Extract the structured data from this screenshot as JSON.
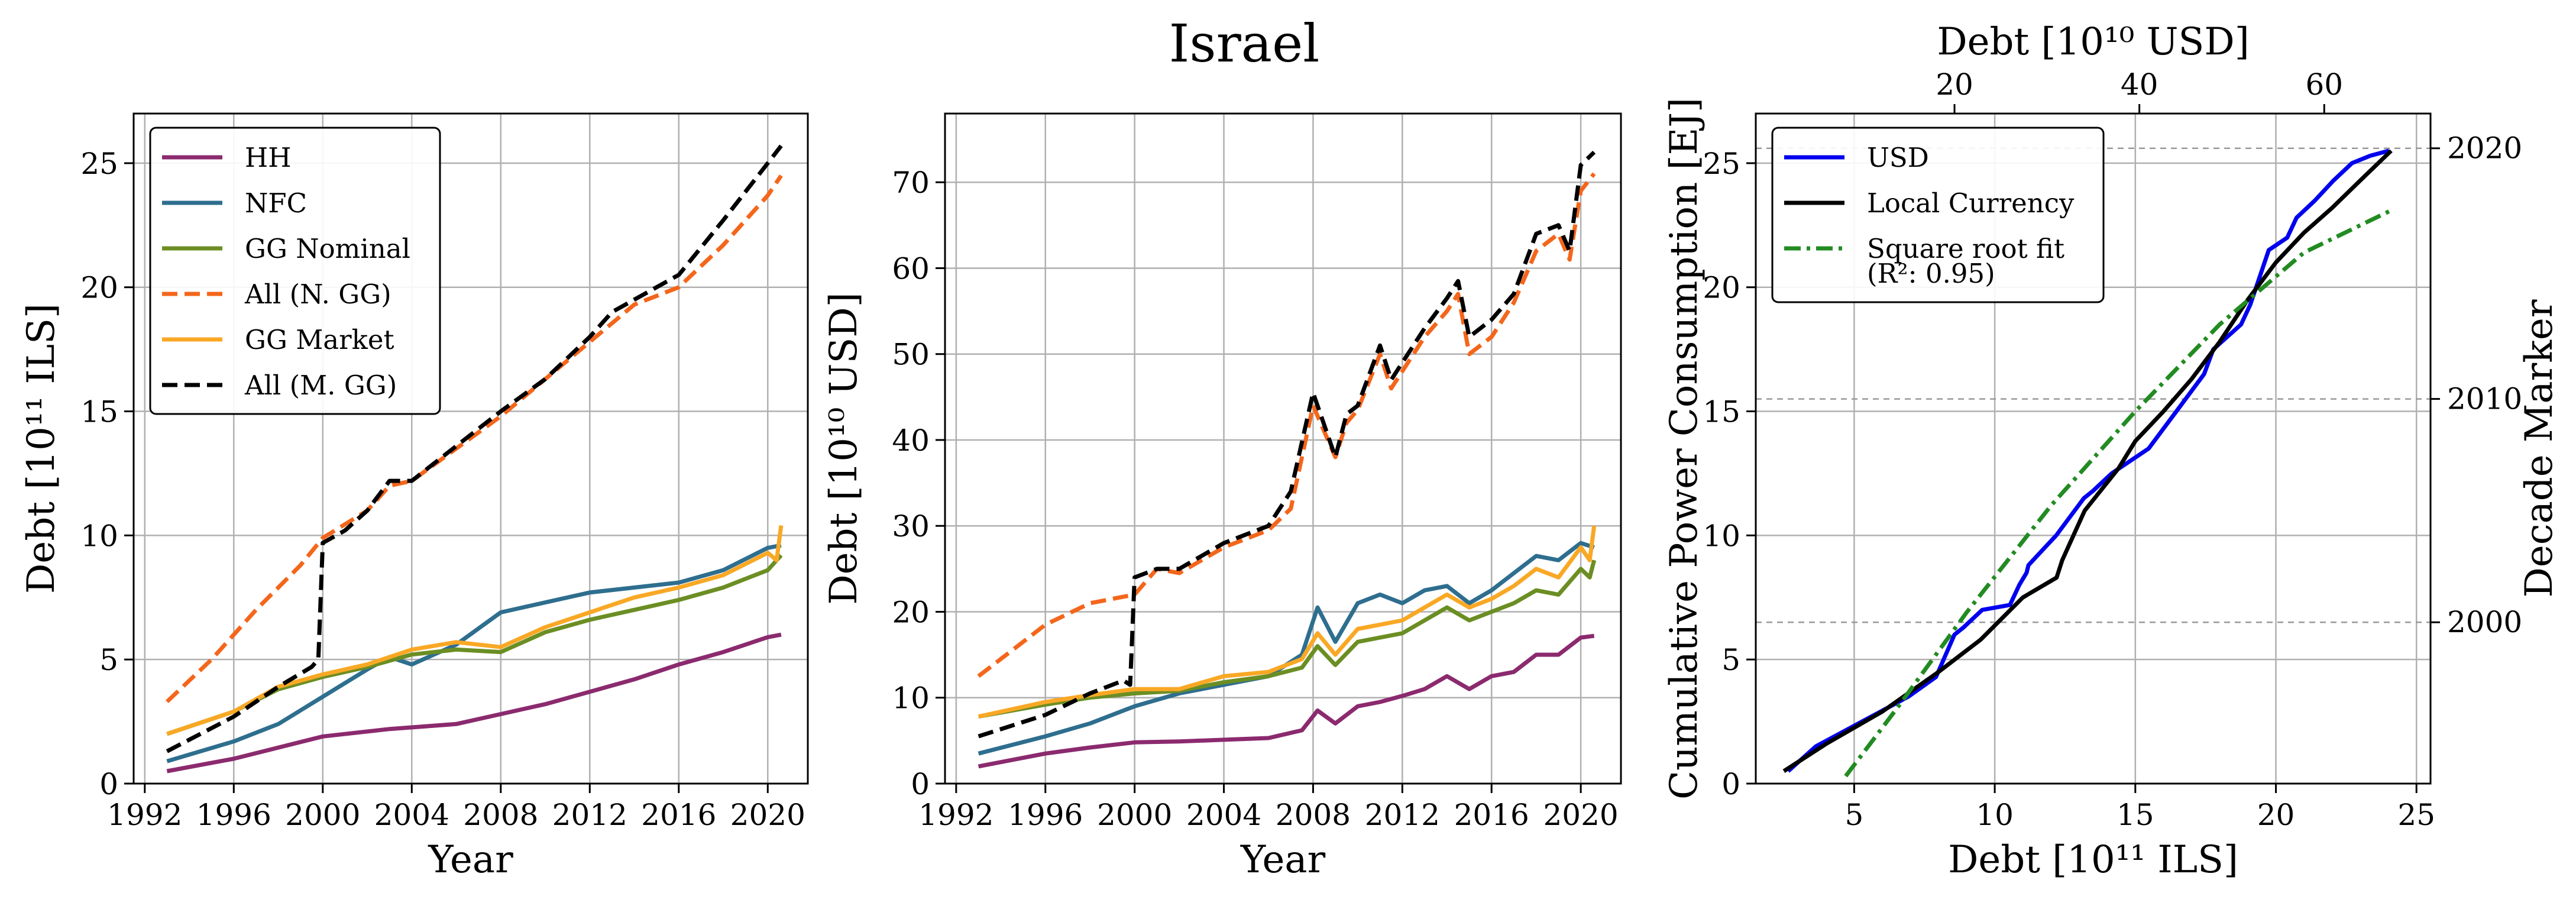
{
  "title": "Israel",
  "chart_data": [
    {
      "type": "line",
      "xlabel": "Year",
      "ylabel": "Debt [10¹¹ ILS]",
      "xlim": [
        1991.5,
        2021.8
      ],
      "ylim": [
        0,
        27
      ],
      "xticks": [
        1992,
        1996,
        2000,
        2004,
        2008,
        2012,
        2016,
        2020
      ],
      "yticks": [
        0,
        5,
        10,
        15,
        20,
        25
      ],
      "grid": true,
      "legend_position": "top-left",
      "series": [
        {
          "name": "HH",
          "color": "#8b2a6e",
          "dash": "solid",
          "x": [
            1993,
            1996,
            2000,
            2003,
            2006,
            2008,
            2010,
            2012,
            2014,
            2016,
            2018,
            2020,
            2020.6
          ],
          "y": [
            0.5,
            1.0,
            1.9,
            2.2,
            2.4,
            2.8,
            3.2,
            3.7,
            4.2,
            4.8,
            5.3,
            5.9,
            6.0
          ]
        },
        {
          "name": "NFC",
          "color": "#2e6e8e",
          "dash": "solid",
          "x": [
            1993,
            1996,
            1998,
            2000,
            2002,
            2003,
            2004,
            2006,
            2008,
            2010,
            2012,
            2014,
            2016,
            2018,
            2020,
            2020.6
          ],
          "y": [
            0.9,
            1.7,
            2.4,
            3.5,
            4.6,
            5.1,
            4.8,
            5.6,
            6.9,
            7.3,
            7.7,
            7.9,
            8.1,
            8.6,
            9.5,
            9.6
          ]
        },
        {
          "name": "GG Nominal",
          "color": "#6b8e23",
          "dash": "solid",
          "x": [
            1993,
            1996,
            1998,
            2000,
            2002,
            2004,
            2006,
            2008,
            2010,
            2012,
            2014,
            2016,
            2018,
            2020,
            2020.6
          ],
          "y": [
            2.0,
            2.9,
            3.8,
            4.3,
            4.7,
            5.2,
            5.4,
            5.3,
            6.1,
            6.6,
            7.0,
            7.4,
            7.9,
            8.6,
            9.2
          ]
        },
        {
          "name": "All (N. GG)",
          "color": "#f4661b",
          "dash": "dashed",
          "x": [
            1993,
            1995,
            1997,
            1999,
            2000,
            2002,
            2003,
            2004,
            2006,
            2008,
            2010,
            2012,
            2014,
            2016,
            2018,
            2020,
            2020.6
          ],
          "y": [
            3.3,
            5.0,
            7.0,
            8.8,
            9.9,
            11.0,
            12.0,
            12.2,
            13.5,
            14.8,
            16.3,
            17.8,
            19.3,
            20.0,
            21.7,
            23.7,
            24.5
          ]
        },
        {
          "name": "GG Market",
          "color": "#f9a825",
          "dash": "solid",
          "x": [
            1993,
            1996,
            1998,
            2000,
            2002,
            2004,
            2006,
            2008,
            2010,
            2012,
            2014,
            2016,
            2018,
            2020,
            2020.4,
            2020.6
          ],
          "y": [
            2.0,
            2.9,
            3.9,
            4.4,
            4.8,
            5.4,
            5.7,
            5.5,
            6.3,
            6.9,
            7.5,
            7.9,
            8.4,
            9.3,
            9.0,
            10.4
          ]
        },
        {
          "name": "All (M. GG)",
          "color": "#000000",
          "dash": "dashed",
          "x": [
            1993,
            1996,
            1998,
            1999.5,
            1999.8,
            2000,
            2001,
            2002,
            2003,
            2004,
            2006,
            2008,
            2010,
            2012,
            2013,
            2014,
            2016,
            2018,
            2020,
            2020.6
          ],
          "y": [
            1.3,
            2.7,
            3.9,
            4.7,
            5.0,
            9.7,
            10.2,
            11.0,
            12.2,
            12.2,
            13.6,
            15.0,
            16.3,
            18.0,
            19.0,
            19.5,
            20.5,
            22.7,
            25.0,
            25.7
          ]
        }
      ]
    },
    {
      "type": "line",
      "xlabel": "Year",
      "ylabel": "Debt [10¹⁰ USD]",
      "xlim": [
        1991.5,
        2021.8
      ],
      "ylim": [
        0,
        78
      ],
      "xticks": [
        1992,
        1996,
        2000,
        2004,
        2008,
        2012,
        2016,
        2020
      ],
      "yticks": [
        0,
        10,
        20,
        30,
        40,
        50,
        60,
        70
      ],
      "grid": true,
      "series": [
        {
          "name": "HH",
          "color": "#8b2a6e",
          "dash": "solid",
          "x": [
            1993,
            1996,
            1998,
            2000,
            2002,
            2004,
            2006,
            2007.5,
            2008.2,
            2009,
            2010,
            2011,
            2012,
            2013,
            2014,
            2015,
            2016,
            2017,
            2018,
            2019,
            2020,
            2020.6
          ],
          "y": [
            2.0,
            3.5,
            4.2,
            4.8,
            4.9,
            5.1,
            5.3,
            6.2,
            8.5,
            7.0,
            9.0,
            9.5,
            10.2,
            11.0,
            12.5,
            11.0,
            12.5,
            13.0,
            15.0,
            15.0,
            17.0,
            17.2
          ]
        },
        {
          "name": "NFC",
          "color": "#2e6e8e",
          "dash": "solid",
          "x": [
            1993,
            1996,
            1998,
            2000,
            2002,
            2004,
            2006,
            2007.5,
            2008.2,
            2009,
            2010,
            2011,
            2012,
            2013,
            2014,
            2015,
            2016,
            2017,
            2018,
            2019,
            2020,
            2020.6
          ],
          "y": [
            3.5,
            5.5,
            7.0,
            9.0,
            10.5,
            11.5,
            12.5,
            15.0,
            20.5,
            16.5,
            21.0,
            22.0,
            21.0,
            22.5,
            23.0,
            21.0,
            22.5,
            24.5,
            26.5,
            26.0,
            28.0,
            27.5
          ]
        },
        {
          "name": "GG Nominal",
          "color": "#6b8e23",
          "dash": "solid",
          "x": [
            1993,
            1996,
            1998,
            2000,
            2002,
            2004,
            2006,
            2007.5,
            2008.2,
            2009,
            2010,
            2011,
            2012,
            2013,
            2014,
            2015,
            2016,
            2017,
            2018,
            2019,
            2020,
            2020.4,
            2020.6
          ],
          "y": [
            7.8,
            9.2,
            10.0,
            10.5,
            10.8,
            11.8,
            12.5,
            13.5,
            16.0,
            13.8,
            16.5,
            17.0,
            17.5,
            19.0,
            20.5,
            19.0,
            20.0,
            21.0,
            22.5,
            22.0,
            25.0,
            24.0,
            26.0
          ]
        },
        {
          "name": "All (N. GG)",
          "color": "#f4661b",
          "dash": "dashed",
          "x": [
            1993,
            1994,
            1996,
            1998,
            2000,
            2001,
            2002,
            2004,
            2006,
            2007,
            2008,
            2009,
            2009.5,
            2010,
            2011,
            2011.5,
            2012,
            2013,
            2014,
            2014.5,
            2015,
            2016,
            2017,
            2018,
            2019,
            2019.5,
            2020,
            2020.6
          ],
          "y": [
            12.5,
            14.5,
            18.5,
            21.0,
            22.0,
            25.0,
            24.5,
            27.5,
            29.5,
            32.0,
            44.0,
            38.0,
            42.0,
            43.5,
            50.0,
            46.0,
            48.0,
            52.0,
            55.0,
            57.0,
            50.0,
            52.0,
            56.0,
            62.0,
            64.0,
            61.0,
            69.0,
            71.0
          ]
        },
        {
          "name": "GG Market",
          "color": "#f9a825",
          "dash": "solid",
          "x": [
            1993,
            1996,
            1998,
            2000,
            2002,
            2004,
            2006,
            2007.5,
            2008.2,
            2009,
            2010,
            2011,
            2012,
            2013,
            2014,
            2015,
            2016,
            2017,
            2018,
            2019,
            2020,
            2020.4,
            2020.6
          ],
          "y": [
            7.8,
            9.5,
            10.3,
            11.0,
            11.0,
            12.5,
            13.0,
            14.5,
            17.5,
            15.0,
            18.0,
            18.5,
            19.0,
            20.5,
            22.0,
            20.5,
            21.5,
            23.0,
            25.0,
            24.0,
            27.5,
            26.0,
            30.0
          ]
        },
        {
          "name": "All (M. GG)",
          "color": "#000000",
          "dash": "dashed",
          "x": [
            1993,
            1996,
            1998,
            1999.5,
            1999.8,
            2000,
            2001,
            2002,
            2004,
            2006,
            2007,
            2008,
            2009,
            2009.5,
            2010,
            2011,
            2011.5,
            2012,
            2013,
            2014,
            2014.5,
            2015,
            2016,
            2017,
            2018,
            2019,
            2019.5,
            2020,
            2020.6
          ],
          "y": [
            5.5,
            8.0,
            10.5,
            12.0,
            11.5,
            24.0,
            25.0,
            25.0,
            28.0,
            30.0,
            34.0,
            45.5,
            38.0,
            43.0,
            44.0,
            51.0,
            47.0,
            49.0,
            53.0,
            56.5,
            58.5,
            52.0,
            54.0,
            57.0,
            64.0,
            65.0,
            62.0,
            72.0,
            73.5
          ]
        }
      ]
    },
    {
      "type": "line",
      "xlabel": "Debt [10¹¹ ILS]",
      "xlabel_top": "Debt [10¹⁰ USD]",
      "ylabel": "Cumulative Power Consumption [EJ]",
      "ylabel_right": "Decade Marker",
      "xlim": [
        1.5,
        25.5
      ],
      "x2lim": [
        -1.5,
        71.5
      ],
      "ylim": [
        0,
        27
      ],
      "xticks": [
        5,
        10,
        15,
        20,
        25
      ],
      "x2ticks": [
        20,
        40,
        60
      ],
      "yticks": [
        0,
        5,
        10,
        15,
        20,
        25
      ],
      "decade_markers": [
        {
          "label": "2000",
          "y": 6.5
        },
        {
          "label": "2010",
          "y": 15.5
        },
        {
          "label": "2020",
          "y": 25.6
        }
      ],
      "grid": true,
      "legend_position": "top-left",
      "series": [
        {
          "name": "USD",
          "color": "#0000ee",
          "dash": "solid",
          "axis": "top",
          "x": [
            2,
            5,
            10,
            15,
            18,
            20,
            21,
            23,
            26,
            27,
            27.8,
            28,
            29,
            31,
            33,
            34,
            35,
            37,
            41,
            44,
            47,
            48,
            51,
            52,
            54,
            56,
            57,
            59,
            61,
            63,
            65,
            67
          ],
          "y": [
            0.5,
            1.5,
            2.5,
            3.5,
            4.3,
            6.0,
            6.3,
            7.0,
            7.2,
            8.0,
            8.5,
            8.8,
            9.2,
            10.0,
            11.0,
            11.5,
            11.8,
            12.5,
            13.5,
            15.0,
            16.5,
            17.5,
            18.5,
            19.3,
            21.5,
            22.0,
            22.8,
            23.5,
            24.3,
            25.0,
            25.3,
            25.5
          ]
        },
        {
          "name": "Local Currency",
          "color": "#000000",
          "dash": "solid",
          "axis": "bottom",
          "x": [
            2.5,
            4,
            6,
            8,
            9.5,
            11,
            12.2,
            12.4,
            13.2,
            14.4,
            15,
            16,
            17,
            18,
            19,
            20,
            21,
            22,
            23,
            24.1
          ],
          "y": [
            0.5,
            1.6,
            2.9,
            4.5,
            5.8,
            7.5,
            8.3,
            9.0,
            11.0,
            12.7,
            13.8,
            15.0,
            16.3,
            17.8,
            19.5,
            21.0,
            22.2,
            23.2,
            24.3,
            25.5
          ]
        },
        {
          "name": "Square root fit",
          "name_line2": "(R²: 0.95)",
          "color": "#228b22",
          "dash": "dashdot",
          "axis": "bottom",
          "x": [
            4.7,
            6.5,
            9,
            12,
            15,
            18,
            21,
            24.1
          ],
          "y": [
            0.3,
            3.0,
            6.9,
            11.2,
            15.0,
            18.5,
            21.4,
            23.1
          ]
        }
      ]
    }
  ]
}
